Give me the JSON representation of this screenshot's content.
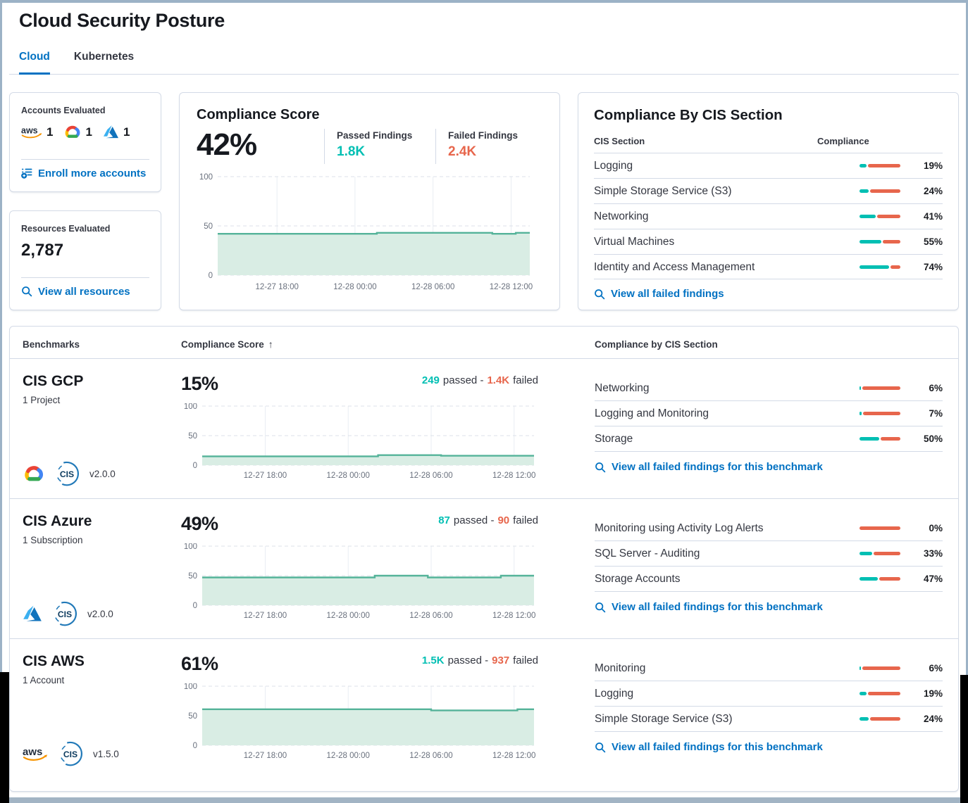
{
  "colors": {
    "passed_teal": "#00BFB3",
    "failed_coral": "#E7664C",
    "link_blue": "#0071C2",
    "active_tab_blue": "#0071C2",
    "chart_line": "#54B399",
    "chart_fill": "#D9EDE4",
    "card_border": "#D3DAE6"
  },
  "header": {
    "title": "Cloud Security Posture",
    "tabs": [
      {
        "label": "Cloud",
        "active": true
      },
      {
        "label": "Kubernetes",
        "active": false
      }
    ]
  },
  "accounts_card": {
    "title": "Accounts Evaluated",
    "providers": [
      {
        "name": "AWS",
        "count": "1"
      },
      {
        "name": "Google Cloud",
        "count": "1"
      },
      {
        "name": "Azure",
        "count": "1"
      }
    ],
    "link_label": "Enroll more accounts"
  },
  "resources_card": {
    "title": "Resources Evaluated",
    "value": "2,787",
    "link_label": "View all resources"
  },
  "score_card": {
    "title": "Compliance Score",
    "score": "42%",
    "passed_label": "Passed Findings",
    "passed_value": "1.8K",
    "failed_label": "Failed Findings",
    "failed_value": "2.4K"
  },
  "cis_card": {
    "title": "Compliance By CIS Section",
    "section_col": "CIS Section",
    "compliance_col": "Compliance",
    "rows": [
      {
        "name": "Logging",
        "pct": 19,
        "pct_label": "19%"
      },
      {
        "name": "Simple Storage Service (S3)",
        "pct": 24,
        "pct_label": "24%"
      },
      {
        "name": "Networking",
        "pct": 41,
        "pct_label": "41%"
      },
      {
        "name": "Virtual Machines",
        "pct": 55,
        "pct_label": "55%"
      },
      {
        "name": "Identity and Access Management",
        "pct": 74,
        "pct_label": "74%"
      }
    ],
    "link_label": "View all failed findings"
  },
  "benchmarks": {
    "benchmarks_col": "Benchmarks",
    "score_col": "Compliance Score",
    "sort_indicator": "↑",
    "cis_col": "Compliance by CIS Section",
    "findings_link_label": "View all failed findings for this benchmark",
    "rows": [
      {
        "name": "CIS GCP",
        "subtitle": "1 Project",
        "version": "v2.0.0",
        "provider": "Google Cloud",
        "score": "15%",
        "passed_value": "249",
        "passed_suffix": "passed -",
        "failed_value": "1.4K",
        "failed_suffix": "failed",
        "sections": [
          {
            "name": "Networking",
            "pct": 6,
            "pct_label": "6%"
          },
          {
            "name": "Logging and Monitoring",
            "pct": 7,
            "pct_label": "7%"
          },
          {
            "name": "Storage",
            "pct": 50,
            "pct_label": "50%"
          }
        ]
      },
      {
        "name": "CIS Azure",
        "subtitle": "1 Subscription",
        "version": "v2.0.0",
        "provider": "Azure",
        "score": "49%",
        "passed_value": "87",
        "passed_suffix": "passed -",
        "failed_value": "90",
        "failed_suffix": "failed",
        "sections": [
          {
            "name": "Monitoring using Activity Log Alerts",
            "pct": 0,
            "pct_label": "0%"
          },
          {
            "name": "SQL Server - Auditing",
            "pct": 33,
            "pct_label": "33%"
          },
          {
            "name": "Storage Accounts",
            "pct": 47,
            "pct_label": "47%"
          }
        ]
      },
      {
        "name": "CIS AWS",
        "subtitle": "1 Account",
        "version": "v1.5.0",
        "provider": "AWS",
        "score": "61%",
        "passed_value": "1.5K",
        "passed_suffix": "passed -",
        "failed_value": "937",
        "failed_suffix": "failed",
        "sections": [
          {
            "name": "Monitoring",
            "pct": 6,
            "pct_label": "6%"
          },
          {
            "name": "Logging",
            "pct": 19,
            "pct_label": "19%"
          },
          {
            "name": "Simple Storage Service (S3)",
            "pct": 24,
            "pct_label": "24%"
          }
        ]
      }
    ]
  },
  "chart_data": [
    {
      "id": "compliance-score-trend",
      "type": "area",
      "series_name": "Compliance Score",
      "ylim": [
        0,
        100
      ],
      "yticks": [
        0,
        50,
        100
      ],
      "xticks": [
        "12-27 18:00",
        "12-28 00:00",
        "12-28 06:00",
        "12-28 12:00"
      ],
      "xtick_pos": [
        0.19,
        0.44,
        0.69,
        0.94
      ],
      "points": [
        {
          "x": 0,
          "y": 42
        },
        {
          "x": 0.51,
          "y": 42
        },
        {
          "x": 0.51,
          "y": 43
        },
        {
          "x": 0.88,
          "y": 43
        },
        {
          "x": 0.88,
          "y": 42
        },
        {
          "x": 0.955,
          "y": 42
        },
        {
          "x": 0.955,
          "y": 43
        },
        {
          "x": 1,
          "y": 43
        }
      ]
    },
    {
      "id": "cis-gcp-trend",
      "type": "area",
      "series_name": "CIS GCP Compliance Score",
      "ylim": [
        0,
        100
      ],
      "yticks": [
        0,
        50,
        100
      ],
      "xticks": [
        "12-27 18:00",
        "12-28 00:00",
        "12-28 06:00",
        "12-28 12:00"
      ],
      "xtick_pos": [
        0.19,
        0.44,
        0.69,
        0.94
      ],
      "points": [
        {
          "x": 0,
          "y": 15
        },
        {
          "x": 0.53,
          "y": 15
        },
        {
          "x": 0.53,
          "y": 17
        },
        {
          "x": 0.72,
          "y": 17
        },
        {
          "x": 0.72,
          "y": 16
        },
        {
          "x": 1,
          "y": 16
        }
      ]
    },
    {
      "id": "cis-azure-trend",
      "type": "area",
      "series_name": "CIS Azure Compliance Score",
      "ylim": [
        0,
        100
      ],
      "yticks": [
        0,
        50,
        100
      ],
      "xticks": [
        "12-27 18:00",
        "12-28 00:00",
        "12-28 06:00",
        "12-28 12:00"
      ],
      "xtick_pos": [
        0.19,
        0.44,
        0.69,
        0.94
      ],
      "points": [
        {
          "x": 0,
          "y": 47
        },
        {
          "x": 0.52,
          "y": 47
        },
        {
          "x": 0.52,
          "y": 50
        },
        {
          "x": 0.68,
          "y": 50
        },
        {
          "x": 0.68,
          "y": 47
        },
        {
          "x": 0.9,
          "y": 47
        },
        {
          "x": 0.9,
          "y": 50
        },
        {
          "x": 1,
          "y": 50
        }
      ]
    },
    {
      "id": "cis-aws-trend",
      "type": "area",
      "series_name": "CIS AWS Compliance Score",
      "ylim": [
        0,
        100
      ],
      "yticks": [
        0,
        50,
        100
      ],
      "xticks": [
        "12-27 18:00",
        "12-28 00:00",
        "12-28 06:00",
        "12-28 12:00"
      ],
      "xtick_pos": [
        0.19,
        0.44,
        0.69,
        0.94
      ],
      "points": [
        {
          "x": 0,
          "y": 61
        },
        {
          "x": 0.69,
          "y": 61
        },
        {
          "x": 0.69,
          "y": 59
        },
        {
          "x": 0.95,
          "y": 59
        },
        {
          "x": 0.95,
          "y": 61
        },
        {
          "x": 1,
          "y": 61
        }
      ]
    }
  ]
}
